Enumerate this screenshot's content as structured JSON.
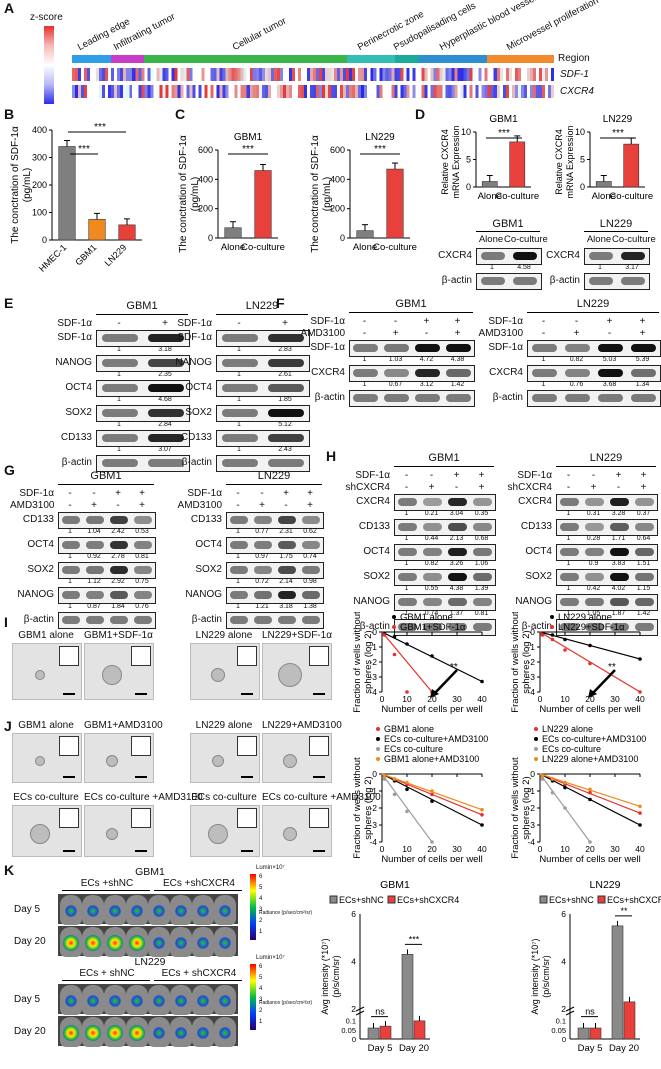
{
  "A": {
    "letter": "A",
    "zscore": "z-score",
    "regions": [
      "Leading edge",
      "Infiltrating tumor",
      "Cellular tumor",
      "Perinecrotic zone",
      "Psudopalisading cells",
      "Hyperplastic blood vessels",
      "Microvessel proliferation"
    ],
    "region_label": "Region",
    "genes": [
      "SDF-1",
      "CXCR4"
    ],
    "region_colors": [
      "#2f9ee8",
      "#c83cc8",
      "#39b54a",
      "#33bdb5",
      "#1aab9b",
      "#2d8fd0",
      "#f28a2e"
    ]
  },
  "B": {
    "letter": "B",
    "ylabel": "The conctration of SDF-1α (pg/mL)",
    "sig": [
      "***",
      "***"
    ],
    "chart_data": {
      "type": "bar",
      "categories": [
        "HMEC-1",
        "GBM1",
        "LN229"
      ],
      "values": [
        340,
        75,
        55
      ],
      "ylim": [
        0,
        400
      ],
      "yticks": [
        "0",
        "100",
        "200",
        "300",
        "400"
      ],
      "colors": [
        "#7f7f7f",
        "#f08a1e",
        "#e8413c"
      ]
    }
  },
  "C": {
    "letter": "C",
    "ylabel": "The conctration of SDF-1α (pg/mL)",
    "sig": "***",
    "charts": [
      {
        "title": "GBM1",
        "categories": [
          "Alone",
          "Co-culture"
        ],
        "values": [
          70,
          460
        ],
        "ylim": [
          0,
          600
        ],
        "yticks": [
          "0",
          "200",
          "400",
          "600"
        ]
      },
      {
        "title": "LN229",
        "categories": [
          "Alone",
          "Co-culture"
        ],
        "values": [
          50,
          470
        ],
        "ylim": [
          0,
          600
        ],
        "yticks": [
          "0",
          "200",
          "400",
          "600"
        ]
      }
    ]
  },
  "D": {
    "letter": "D",
    "ylabel": "Relative CXCR4 mRNA Expression",
    "sig": "***",
    "charts": [
      {
        "title": "GBM1",
        "categories": [
          "Alone",
          "Co-culture"
        ],
        "values": [
          1,
          8.2
        ],
        "ylim": [
          0,
          10
        ],
        "yticks": [
          "0",
          "5",
          "10"
        ]
      },
      {
        "title": "LN229",
        "categories": [
          "Alone",
          "Co-culture"
        ],
        "values": [
          1,
          7.8
        ],
        "ylim": [
          0,
          10
        ],
        "yticks": [
          "0",
          "5",
          "10"
        ]
      }
    ],
    "blots": [
      {
        "title": "GBM1",
        "cols": [
          "Alone",
          "Co-culture"
        ],
        "rows": [
          "CXCR4",
          "β-actin"
        ],
        "nums": [
          "1",
          "4.58"
        ]
      },
      {
        "title": "LN229",
        "cols": [
          "Alone",
          "Co-culture"
        ],
        "rows": [
          "CXCR4",
          "β-actin"
        ],
        "nums": [
          "1",
          "3.17"
        ]
      }
    ]
  },
  "E": {
    "letter": "E",
    "treat": "SDF-1α",
    "signs": [
      "-",
      "+"
    ],
    "blots": [
      {
        "title": "GBM1",
        "rows": [
          "SDF-1α",
          "NANOG",
          "OCT4",
          "SOX2",
          "CD133",
          "β-actin"
        ],
        "nums": [
          [
            "1",
            "3.18"
          ],
          [
            "1",
            "2.35"
          ],
          [
            "1",
            "4.68"
          ],
          [
            "1",
            "2.84"
          ],
          [
            "1",
            "3.07"
          ]
        ]
      },
      {
        "title": "LN229",
        "rows": [
          "SDF-1α",
          "NANOG",
          "OCT4",
          "SOX2",
          "CD133",
          "β-actin"
        ],
        "nums": [
          [
            "1",
            "2.83"
          ],
          [
            "1",
            "2.61"
          ],
          [
            "1",
            "1.85"
          ],
          [
            "1",
            "5.12"
          ],
          [
            "1",
            "2.43"
          ]
        ]
      }
    ]
  },
  "F": {
    "letter": "F",
    "treats": [
      "SDF-1α",
      "AMD3100"
    ],
    "signs": [
      [
        "-",
        "-",
        "+",
        "+"
      ],
      [
        "-",
        "+",
        "-",
        "+"
      ]
    ],
    "blots": [
      {
        "title": "GBM1",
        "rows": [
          "SDF-1α",
          "CXCR4",
          "β-actin"
        ],
        "nums": [
          [
            "1",
            "1.03",
            "4.72",
            "4.38"
          ],
          [
            "1",
            "0.67",
            "3.12",
            "1.42"
          ]
        ]
      },
      {
        "title": "LN229",
        "rows": [
          "SDF-1α",
          "CXCR4",
          "β-actin"
        ],
        "nums": [
          [
            "1",
            "0.82",
            "5.03",
            "5.39"
          ],
          [
            "1",
            "0.76",
            "3.68",
            "1.34"
          ]
        ]
      }
    ]
  },
  "G": {
    "letter": "G",
    "treats": [
      "SDF-1α",
      "AMD3100"
    ],
    "signs": [
      [
        "-",
        "-",
        "+",
        "+"
      ],
      [
        "-",
        "+",
        "-",
        "+"
      ]
    ],
    "blots": [
      {
        "title": "GBM1",
        "rows": [
          "CD133",
          "OCT4",
          "SOX2",
          "NANOG",
          "β-actin"
        ],
        "nums": [
          [
            "1",
            "1.04",
            "2.42",
            "0.53"
          ],
          [
            "1",
            "0.92",
            "2.78",
            "0.81"
          ],
          [
            "1",
            "1.12",
            "2.92",
            "0.75"
          ],
          [
            "1",
            "0.87",
            "1.84",
            "0.76"
          ]
        ]
      },
      {
        "title": "LN229",
        "rows": [
          "CD133",
          "OCT4",
          "SOX2",
          "NANOG",
          "β-actin"
        ],
        "nums": [
          [
            "1",
            "0.77",
            "2.31",
            "0.62"
          ],
          [
            "1",
            "0.97",
            "1.75",
            "0.74"
          ],
          [
            "1",
            "0.72",
            "2.14",
            "0.98"
          ],
          [
            "1",
            "1.21",
            "3.18",
            "1.38"
          ]
        ]
      }
    ]
  },
  "H": {
    "letter": "H",
    "treats": [
      "SDF-1α",
      "shCXCR4"
    ],
    "signs": [
      [
        "-",
        "-",
        "+",
        "+"
      ],
      [
        "-",
        "+",
        "-",
        "+"
      ]
    ],
    "blots": [
      {
        "title": "GBM1",
        "rows": [
          "CXCR4",
          "CD133",
          "OCT4",
          "SOX2",
          "NANOG",
          "β-actin"
        ],
        "nums": [
          [
            "1",
            "0.21",
            "3.04",
            "0.35"
          ],
          [
            "1",
            "0.44",
            "2.13",
            "0.68"
          ],
          [
            "1",
            "0.82",
            "3.26",
            "1.06"
          ],
          [
            "1",
            "0.55",
            "4.38",
            "1.39"
          ],
          [
            "1",
            "0.74",
            "1.37",
            "0.81"
          ]
        ]
      },
      {
        "title": "LN229",
        "rows": [
          "CXCR4",
          "CD133",
          "OCT4",
          "SOX2",
          "NANOG",
          "β-actin"
        ],
        "nums": [
          [
            "1",
            "0.31",
            "3.28",
            "0.37"
          ],
          [
            "1",
            "0.28",
            "1.71",
            "0.64"
          ],
          [
            "1",
            "0.9",
            "3.83",
            "1.51"
          ],
          [
            "1",
            "0.42",
            "4.02",
            "1.15"
          ],
          [
            "1",
            "1.05",
            "1.87",
            "1.42"
          ]
        ]
      }
    ]
  },
  "I": {
    "letter": "I",
    "photos": [
      "GBM1 alone",
      "GBM1+SDF-1α",
      "LN229 alone",
      "LN229+SDF-1α"
    ],
    "ylabel": "Fraction of wells without spheres (log 2)",
    "xlabel": "Number of cells per well",
    "sig": "**",
    "charts": [
      {
        "series": [
          {
            "name": "GBM1 alone",
            "color": "#000000",
            "x": [
              1,
              5,
              10,
              20,
              40
            ],
            "y": [
              -0.1,
              -0.3,
              -0.8,
              -1.6,
              -3.3
            ]
          },
          {
            "name": "GBM1+SDF-1α",
            "color": "#e8302c",
            "x": [
              1,
              5,
              10,
              20
            ],
            "y": [
              -0.2,
              -1.5,
              -4,
              -4
            ]
          }
        ],
        "xlim": [
          0,
          40
        ],
        "ylim": [
          -4,
          0
        ]
      },
      {
        "series": [
          {
            "name": "LN229 alone",
            "color": "#000000",
            "x": [
              1,
              5,
              10,
              20,
              40
            ],
            "y": [
              -0.1,
              -0.2,
              -0.5,
              -0.9,
              -1.8
            ]
          },
          {
            "name": "LN229+SDF-1α",
            "color": "#e8302c",
            "x": [
              1,
              5,
              10,
              20,
              40
            ],
            "y": [
              -0.2,
              -0.5,
              -1.2,
              -2.1,
              -4
            ]
          }
        ],
        "xlim": [
          0,
          40
        ],
        "ylim": [
          -4,
          0
        ]
      }
    ]
  },
  "J": {
    "letter": "J",
    "photos_top": [
      "GBM1 alone",
      "GBM1+AMD3100",
      "LN229 alone",
      "LN229+AMD3100"
    ],
    "photos_bottom": [
      "ECs co-culture",
      "ECs co-culture +AMD3100",
      "ECs co-culture",
      "ECs co-culture +AMD3100"
    ],
    "ylabel": "Fraction of wells without spheres (log 2)",
    "xlabel": "Number of cells per well",
    "charts": [
      {
        "series": [
          {
            "name": "GBM1 alone",
            "color": "#e8302c",
            "x": [
              1,
              5,
              10,
              20,
              40
            ],
            "y": [
              -0.1,
              -0.3,
              -0.6,
              -1.2,
              -2.4
            ]
          },
          {
            "name": "ECs co-culture+AMD3100",
            "color": "#000000",
            "x": [
              1,
              5,
              10,
              20,
              40
            ],
            "y": [
              -0.1,
              -0.4,
              -0.9,
              -1.6,
              -3
            ]
          },
          {
            "name": "ECs co-culture",
            "color": "#9e9e9e",
            "x": [
              1,
              5,
              10,
              20
            ],
            "y": [
              -0.3,
              -1.2,
              -2.2,
              -4
            ]
          },
          {
            "name": "GBM1 alone+AMD3100",
            "color": "#f08a1e",
            "x": [
              1,
              5,
              10,
              20,
              40
            ],
            "y": [
              -0.1,
              -0.3,
              -0.5,
              -1,
              -2.1
            ]
          }
        ],
        "xlim": [
          0,
          40
        ],
        "ylim": [
          -4,
          0
        ]
      },
      {
        "series": [
          {
            "name": "LN229 alone",
            "color": "#e8302c",
            "x": [
              1,
              5,
              10,
              20,
              40
            ],
            "y": [
              -0.1,
              -0.3,
              -0.6,
              -1.1,
              -2.3
            ]
          },
          {
            "name": "ECs co-culture+AMD3100",
            "color": "#000000",
            "x": [
              1,
              5,
              10,
              20,
              40
            ],
            "y": [
              -0.1,
              -0.4,
              -0.8,
              -1.5,
              -3
            ]
          },
          {
            "name": "ECs co-culture",
            "color": "#9e9e9e",
            "x": [
              1,
              5,
              10,
              20
            ],
            "y": [
              -0.3,
              -1.1,
              -2,
              -4
            ]
          },
          {
            "name": "LN229 alone+AMD3100",
            "color": "#f08a1e",
            "x": [
              1,
              5,
              10,
              20,
              40
            ],
            "y": [
              -0.1,
              -0.3,
              -0.5,
              -0.9,
              -1.9
            ]
          }
        ],
        "xlim": [
          0,
          40
        ],
        "ylim": [
          -4,
          0
        ]
      }
    ]
  },
  "K": {
    "letter": "K",
    "groups": [
      {
        "title": "GBM1",
        "cols": [
          "ECs +shNC",
          "ECs +shCXCR4"
        ]
      },
      {
        "title": "LN229",
        "cols": [
          "ECs + shNC",
          "ECs + shCXCR4"
        ]
      }
    ],
    "days": [
      "Day 5",
      "Day 20"
    ],
    "colorbar": {
      "title": "Lumin×10⁷",
      "unit": "Radiance (p/sec/cm²/sr)",
      "ticks": [
        "6",
        "5",
        "4",
        "3",
        "2",
        "1"
      ]
    },
    "ylabel": "Avg intensity (*10⁷) (p/s/cm/sr)",
    "legend": [
      "ECs+shNC",
      "ECs+shCXCR4"
    ],
    "charts": [
      {
        "title": "GBM1",
        "categories": [
          "Day 5",
          "Day 20"
        ],
        "series": [
          {
            "name": "ECs+shNC",
            "color": "#8a8a8a",
            "values": [
              0.06,
              4.3
            ]
          },
          {
            "name": "ECs+shCXCR4",
            "color": "#e8413c",
            "values": [
              0.07,
              1.5
            ]
          }
        ],
        "sig": [
          "ns",
          "***"
        ]
      },
      {
        "title": "LN229",
        "categories": [
          "Day 5",
          "Day 20"
        ],
        "series": [
          {
            "name": "ECs+shNC",
            "color": "#8a8a8a",
            "values": [
              0.06,
              5.5
            ]
          },
          {
            "name": "ECs+shCXCR4",
            "color": "#e8413c",
            "values": [
              0.06,
              2.3
            ]
          }
        ],
        "sig": [
          "ns",
          "**"
        ]
      }
    ]
  }
}
